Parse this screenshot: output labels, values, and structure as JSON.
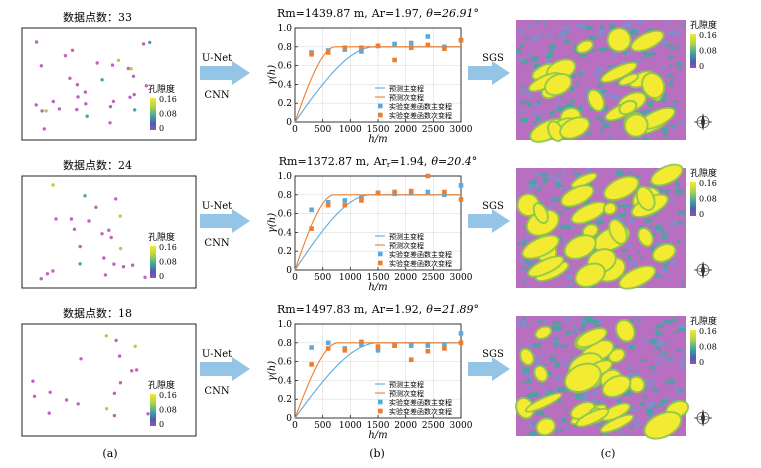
{
  "rows": [
    {
      "points_label": "数据点数：33",
      "model_labels": [
        "U-Net",
        "CNN"
      ],
      "sgs_label": "SGS",
      "title_rm": "Rm=1439.87 m,",
      "title_ar_prefix": "Ar",
      "title_ar_sub": "",
      "title_ar_value": "=1.97,",
      "title_theta": "θ=26.91°",
      "chart_data": {
        "type": "scatter",
        "xlabel": "h/m",
        "ylabel": "γ(h)",
        "xlim": [
          0,
          3000
        ],
        "ylim": [
          0,
          1.0
        ],
        "xticks": [
          0,
          500,
          1000,
          1500,
          2000,
          2500,
          3000
        ],
        "yticks": [
          0,
          0.2,
          0.4,
          0.6,
          0.8,
          1.0
        ],
        "ytick_labels": [
          "0",
          "0.2",
          "0.4",
          "0.6",
          "0.8",
          "1.0"
        ],
        "sill": 0.8,
        "range_major": 1440,
        "range_minor": 730,
        "legend": [
          "预测主变程",
          "预测次变程",
          "实验变差函数主变程",
          "实验变差函数次变程"
        ],
        "series": [
          {
            "points": [
              [
                300,
                0.74
              ],
              [
                600,
                0.76
              ],
              [
                900,
                0.77
              ],
              [
                1200,
                0.75
              ],
              [
                1500,
                0.81
              ],
              [
                1800,
                0.83
              ],
              [
                2100,
                0.84
              ],
              [
                2400,
                0.91
              ],
              [
                2700,
                0.8
              ],
              [
                3000,
                0.87
              ]
            ]
          },
          {
            "points": [
              [
                300,
                0.72
              ],
              [
                600,
                0.74
              ],
              [
                900,
                0.79
              ],
              [
                1200,
                0.79
              ],
              [
                1500,
                0.81
              ],
              [
                1800,
                0.66
              ],
              [
                2100,
                0.79
              ],
              [
                2400,
                0.82
              ],
              [
                2700,
                0.78
              ],
              [
                3000,
                0.87
              ]
            ]
          }
        ]
      }
    },
    {
      "points_label": "数据点数：24",
      "model_labels": [
        "U-Net",
        "CNN"
      ],
      "sgs_label": "SGS",
      "title_rm": "Rm=1372.87 m,",
      "title_ar_prefix": "Ar",
      "title_ar_sub": "r",
      "title_ar_value": "=1.94,",
      "title_theta": "θ=20.4°",
      "chart_data": {
        "type": "scatter",
        "xlabel": "h/m",
        "ylabel": "γ(h)",
        "xlim": [
          0,
          3000
        ],
        "ylim": [
          0,
          1.0
        ],
        "xticks": [
          0,
          500,
          1000,
          1500,
          2000,
          2500,
          3000
        ],
        "yticks": [
          0,
          0.2,
          0.4,
          0.6,
          0.8,
          1.0
        ],
        "ytick_labels": [
          "0",
          "0.2",
          "0.4",
          "0.6",
          "0.8",
          "1.0"
        ],
        "sill": 0.8,
        "range_major": 1373,
        "range_minor": 708,
        "legend": [
          "预测主变程",
          "预测次变程",
          "实验变差函数主变程",
          "实验变差函数次变程"
        ],
        "series": [
          {
            "points": [
              [
                300,
                0.64
              ],
              [
                600,
                0.72
              ],
              [
                900,
                0.74
              ],
              [
                1200,
                0.77
              ],
              [
                1500,
                0.82
              ],
              [
                1800,
                0.81
              ],
              [
                2100,
                0.82
              ],
              [
                2400,
                0.83
              ],
              [
                2700,
                0.8
              ],
              [
                3000,
                0.9
              ]
            ]
          },
          {
            "points": [
              [
                300,
                0.44
              ],
              [
                600,
                0.69
              ],
              [
                900,
                0.69
              ],
              [
                1200,
                0.74
              ],
              [
                1500,
                0.82
              ],
              [
                1800,
                0.83
              ],
              [
                2100,
                0.84
              ],
              [
                2400,
                1.0
              ],
              [
                2700,
                0.83
              ],
              [
                3000,
                0.75
              ]
            ]
          }
        ]
      }
    },
    {
      "points_label": "数据点数：18",
      "model_labels": [
        "U-Net",
        "CNN"
      ],
      "sgs_label": "SGS",
      "title_rm": "Rm=1497.83 m,",
      "title_ar_prefix": "Ar",
      "title_ar_sub": "",
      "title_ar_value": "=1.92,",
      "title_theta": "θ=21.89°",
      "chart_data": {
        "type": "scatter",
        "xlabel": "h/m",
        "ylabel": "γ(h)",
        "xlim": [
          0,
          3000
        ],
        "ylim": [
          0,
          1.0
        ],
        "xticks": [
          0,
          500,
          1000,
          1500,
          2000,
          2500,
          3000
        ],
        "yticks": [
          0,
          0.2,
          0.4,
          0.6,
          0.8,
          1.0
        ],
        "ytick_labels": [
          "0",
          "0.2",
          "0.4",
          "0.6",
          "0.8",
          "1.0"
        ],
        "sill": 0.8,
        "range_major": 1498,
        "range_minor": 780,
        "legend": [
          "预测主变程",
          "预测次变程",
          "实验变差函数主变程",
          "实验变差函数次变程"
        ],
        "series": [
          {
            "points": [
              [
                300,
                0.75
              ],
              [
                600,
                0.8
              ],
              [
                900,
                0.74
              ],
              [
                1200,
                0.78
              ],
              [
                1500,
                0.72
              ],
              [
                1800,
                0.77
              ],
              [
                2100,
                0.77
              ],
              [
                2400,
                0.77
              ],
              [
                2700,
                0.78
              ],
              [
                3000,
                0.9
              ]
            ]
          },
          {
            "points": [
              [
                300,
                0.57
              ],
              [
                600,
                0.74
              ],
              [
                900,
                0.72
              ],
              [
                1200,
                0.81
              ],
              [
                1500,
                0.76
              ],
              [
                1800,
                0.77
              ],
              [
                2100,
                0.62
              ],
              [
                2400,
                0.71
              ],
              [
                2700,
                0.74
              ],
              [
                3000,
                0.8
              ]
            ]
          }
        ]
      }
    }
  ],
  "colorbar": {
    "title": "孔隙度",
    "labels": [
      "0.16",
      "0.08",
      "0"
    ]
  },
  "colors": {
    "major": "#5aabdd",
    "minor": "#f07d2b",
    "arrow": "#94c5e6",
    "map_low": "#b86fbf",
    "map_mid": "#3fa8a0",
    "map_high": "#f3ea32"
  },
  "panel_labels": [
    "(a)",
    "(b)",
    "(c)"
  ]
}
